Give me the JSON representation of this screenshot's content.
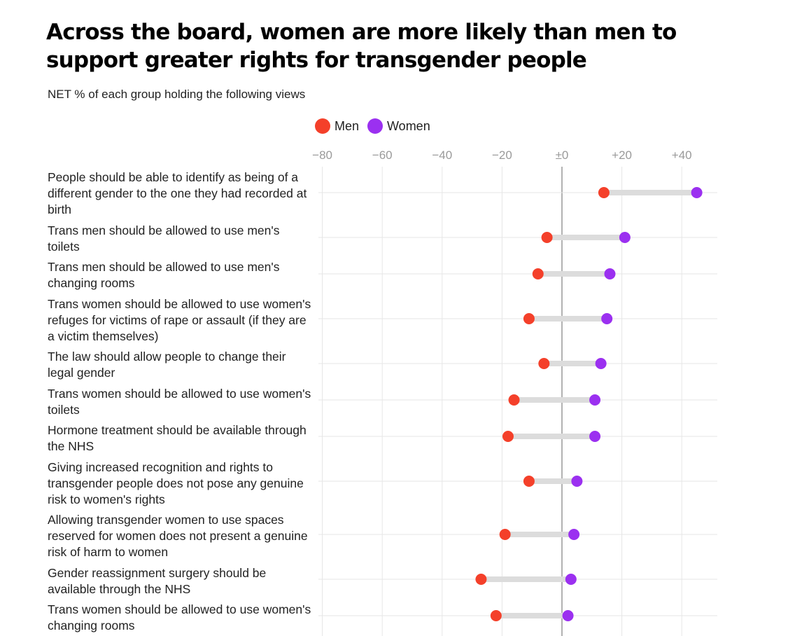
{
  "title": "Across the board, women are more likely than men to support greater rights for transgender people",
  "subtitle": "NET % of each group holding the following views",
  "legend": [
    {
      "label": "Men",
      "color": "#f4402a"
    },
    {
      "label": "Women",
      "color": "#9b30f0"
    }
  ],
  "chart_data": {
    "type": "dot-range",
    "title": "Across the board, women are more likely than men to support greater rights for transgender people",
    "subtitle": "NET % of each group holding the following views",
    "x_ticks": [
      "−80",
      "−60",
      "−40",
      "−20",
      "±0",
      "+20",
      "+40"
    ],
    "x_tick_values": [
      -80,
      -60,
      -40,
      -20,
      0,
      20,
      40
    ],
    "xlim": [
      -81,
      52
    ],
    "grid": true,
    "legend_position": "top",
    "series": [
      {
        "name": "Men",
        "color": "#f4402a"
      },
      {
        "name": "Women",
        "color": "#9b30f0"
      }
    ],
    "rows": [
      {
        "label": "People should be able to identify as being of a different gender to the one they had recorded at birth",
        "men": 14,
        "women": 45
      },
      {
        "label": "Trans men should be allowed to use men's toilets",
        "men": -5,
        "women": 21
      },
      {
        "label": "Trans men should be allowed to use men's changing rooms",
        "men": -8,
        "women": 16
      },
      {
        "label": "Trans women should be allowed to use women's refuges for victims of rape or assault (if they are a victim themselves)",
        "men": -11,
        "women": 15
      },
      {
        "label": "The law should allow people to change their legal gender",
        "men": -6,
        "women": 13
      },
      {
        "label": "Trans women should be allowed to use women's toilets",
        "men": -16,
        "women": 11
      },
      {
        "label": "Hormone treatment should be available through the NHS",
        "men": -18,
        "women": 11
      },
      {
        "label": "Giving increased recognition and rights to transgender people does not pose any genuine risk to women's rights",
        "men": -11,
        "women": 5
      },
      {
        "label": "Allowing transgender women to use spaces reserved for women does not present a genuine risk of harm to women",
        "men": -19,
        "women": 4
      },
      {
        "label": "Gender reassignment surgery should be available through the NHS",
        "men": -27,
        "women": 3
      },
      {
        "label": "Trans women should be allowed to use women's changing rooms",
        "men": -22,
        "women": 2
      }
    ]
  }
}
